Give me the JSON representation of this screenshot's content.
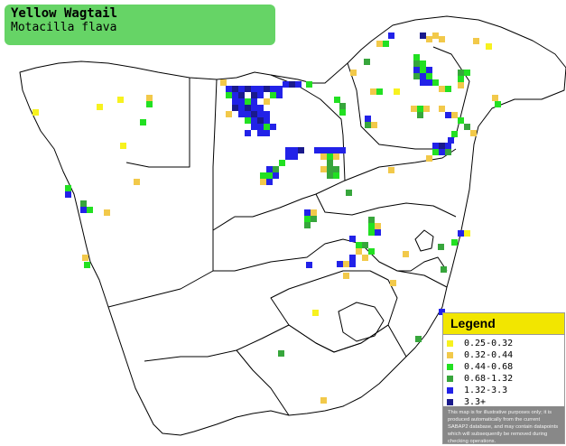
{
  "title": {
    "common_name": "Yellow Wagtail",
    "scientific_name": "Motacilla flava"
  },
  "legend": {
    "heading": "Legend",
    "items": [
      {
        "label": "0.25-0.32",
        "color": "#f7f21f"
      },
      {
        "label": "0.32-0.44",
        "color": "#f2c94a"
      },
      {
        "label": "0.44-0.68",
        "color": "#22e022"
      },
      {
        "label": "0.68-1.32",
        "color": "#37a63c"
      },
      {
        "label": "1.32-3.3",
        "color": "#2222e8"
      },
      {
        "label": "3.3+",
        "color": "#1a1a8c"
      }
    ],
    "disclaimer": "This map is for illustrative purposes only; it is produced automatically from the current SABAP2 database, and may contain datapoints which will subsequently be removed during checking operations."
  },
  "colors": {
    "title_bg": "#66d466",
    "legend_head_bg": "#f2e600",
    "disclaimer_bg": "#888888",
    "map_line": "#000000",
    "land": "#ffffff"
  }
}
